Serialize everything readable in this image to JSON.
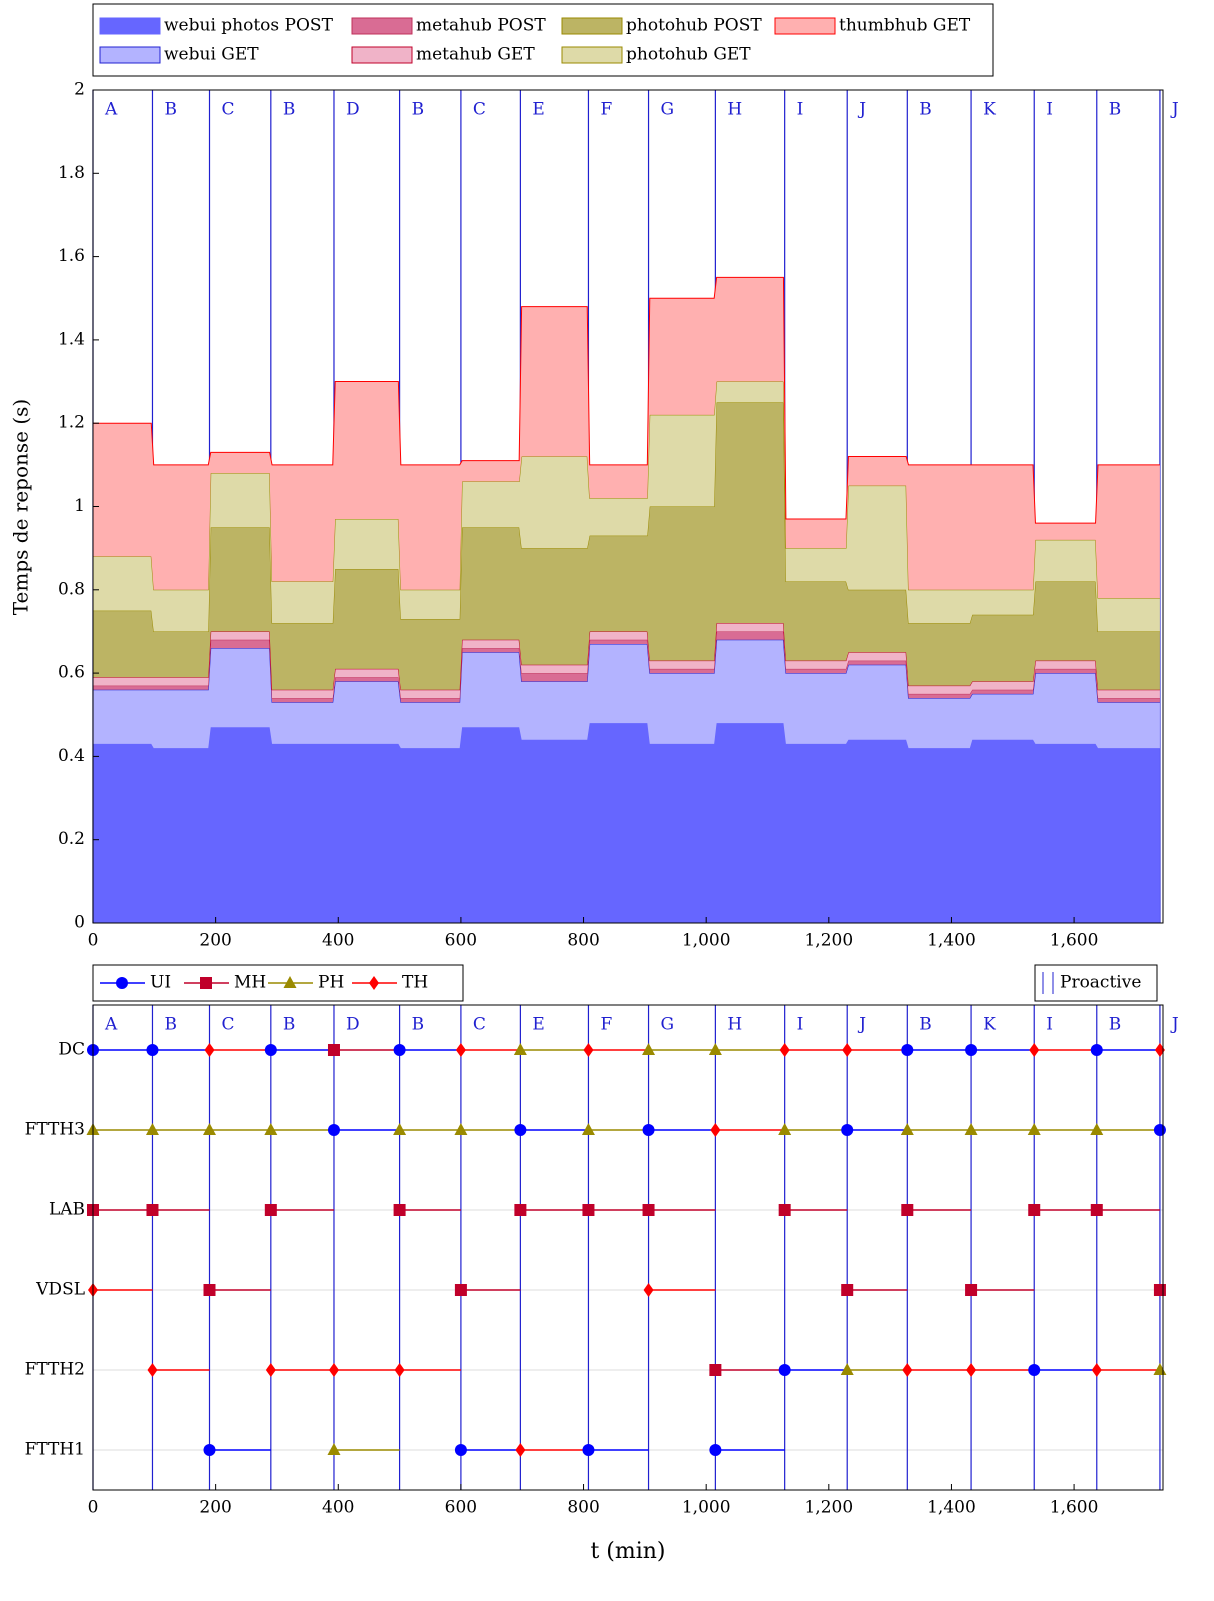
{
  "chart_data": [
    {
      "type": "area",
      "y_label": "Temps de reponse (s)",
      "xlim": [
        0,
        1745
      ],
      "ylim": [
        0,
        2
      ],
      "xticks": [
        0,
        200,
        400,
        600,
        800,
        {
          "value": 1000,
          "label": "1,000"
        },
        {
          "value": 1200,
          "label": "1,200"
        },
        {
          "value": 1400,
          "label": "1,400"
        },
        {
          "value": 1600,
          "label": "1,600"
        }
      ],
      "yticks": [
        0,
        0.2,
        0.4,
        0.6,
        0.8,
        1,
        1.2,
        1.4,
        1.6,
        1.8,
        2
      ],
      "phases": {
        "x": [
          0,
          97,
          190,
          290,
          393,
          500,
          600,
          697,
          808,
          906,
          1015,
          1128,
          1230,
          1328,
          1432,
          1535,
          1637,
          1740
        ],
        "labels": [
          "A",
          "B",
          "C",
          "B",
          "D",
          "B",
          "C",
          "E",
          "F",
          "G",
          "H",
          "I",
          "J",
          "B",
          "K",
          "I",
          "B",
          "J"
        ]
      },
      "x": [
        0,
        95,
        99,
        188,
        192,
        288,
        292,
        391,
        395,
        498,
        502,
        598,
        602,
        695,
        699,
        806,
        810,
        904,
        908,
        1013,
        1017,
        1126,
        1130,
        1228,
        1232,
        1326,
        1330,
        1430,
        1434,
        1533,
        1537,
        1635,
        1639,
        1740
      ],
      "series": [
        {
          "name": "webui photos POST",
          "color": "#6666ff",
          "edge": "#6666ff",
          "values": [
            0.43,
            0.43,
            0.42,
            0.42,
            0.47,
            0.47,
            0.43,
            0.43,
            0.43,
            0.43,
            0.42,
            0.42,
            0.47,
            0.47,
            0.44,
            0.44,
            0.48,
            0.48,
            0.43,
            0.43,
            0.48,
            0.48,
            0.43,
            0.43,
            0.44,
            0.44,
            0.42,
            0.42,
            0.44,
            0.44,
            0.43,
            0.43,
            0.42,
            0.42
          ]
        },
        {
          "name": "webui GET",
          "color": "#b3b3ff",
          "edge": "#2020d0",
          "values": [
            0.13,
            0.13,
            0.14,
            0.14,
            0.19,
            0.19,
            0.1,
            0.1,
            0.15,
            0.15,
            0.11,
            0.11,
            0.18,
            0.18,
            0.14,
            0.14,
            0.19,
            0.19,
            0.17,
            0.17,
            0.2,
            0.2,
            0.17,
            0.17,
            0.18,
            0.18,
            0.12,
            0.12,
            0.11,
            0.11,
            0.17,
            0.17,
            0.11,
            0.11
          ]
        },
        {
          "name": "metahub POST",
          "color": "#d96c94",
          "edge": "#c0305a",
          "values": [
            0.01,
            0.01,
            0.01,
            0.01,
            0.02,
            0.02,
            0.01,
            0.01,
            0.01,
            0.01,
            0.01,
            0.01,
            0.01,
            0.01,
            0.02,
            0.02,
            0.01,
            0.01,
            0.01,
            0.01,
            0.02,
            0.02,
            0.01,
            0.01,
            0.01,
            0.01,
            0.01,
            0.01,
            0.01,
            0.01,
            0.01,
            0.01,
            0.01,
            0.01
          ]
        },
        {
          "name": "metahub GET",
          "color": "#f0b3c8",
          "edge": "#c0002a",
          "values": [
            0.02,
            0.02,
            0.02,
            0.02,
            0.02,
            0.02,
            0.02,
            0.02,
            0.02,
            0.02,
            0.02,
            0.02,
            0.02,
            0.02,
            0.02,
            0.02,
            0.02,
            0.02,
            0.02,
            0.02,
            0.02,
            0.02,
            0.02,
            0.02,
            0.02,
            0.02,
            0.02,
            0.02,
            0.02,
            0.02,
            0.02,
            0.02,
            0.02,
            0.02
          ]
        },
        {
          "name": "photohub POST",
          "color": "#bcb464",
          "edge": "#9a8a00",
          "values": [
            0.16,
            0.16,
            0.11,
            0.11,
            0.25,
            0.25,
            0.16,
            0.16,
            0.24,
            0.24,
            0.17,
            0.17,
            0.27,
            0.27,
            0.28,
            0.28,
            0.23,
            0.23,
            0.37,
            0.37,
            0.53,
            0.53,
            0.19,
            0.19,
            0.15,
            0.15,
            0.15,
            0.15,
            0.16,
            0.16,
            0.19,
            0.19,
            0.14,
            0.14
          ]
        },
        {
          "name": "photohub GET",
          "color": "#dedaa8",
          "edge": "#9a8a00",
          "values": [
            0.13,
            0.13,
            0.1,
            0.1,
            0.13,
            0.13,
            0.1,
            0.1,
            0.12,
            0.12,
            0.07,
            0.07,
            0.11,
            0.11,
            0.22,
            0.22,
            0.09,
            0.09,
            0.22,
            0.22,
            0.05,
            0.05,
            0.08,
            0.08,
            0.25,
            0.25,
            0.08,
            0.08,
            0.06,
            0.06,
            0.1,
            0.1,
            0.08,
            0.08
          ]
        },
        {
          "name": "thumbhub GET",
          "color": "#ffb0b0",
          "edge": "#ff0000",
          "values": [
            0.32,
            0.32,
            0.3,
            0.3,
            0.05,
            0.05,
            0.28,
            0.28,
            0.33,
            0.33,
            0.3,
            0.3,
            0.05,
            0.05,
            0.36,
            0.36,
            0.08,
            0.08,
            0.28,
            0.28,
            0.25,
            0.25,
            0.07,
            0.07,
            0.07,
            0.07,
            0.3,
            0.3,
            0.3,
            0.3,
            0.04,
            0.04,
            0.32,
            0.32
          ]
        }
      ]
    },
    {
      "type": "timeline",
      "x_label": "t (min)",
      "proactive_label": "Proactive",
      "xlim": [
        0,
        1745
      ],
      "xticks": [
        0,
        200,
        400,
        600,
        800,
        {
          "value": 1000,
          "label": "1,000"
        },
        {
          "value": 1200,
          "label": "1,200"
        },
        {
          "value": 1400,
          "label": "1,400"
        },
        {
          "value": 1600,
          "label": "1,600"
        }
      ],
      "categories": [
        "DC",
        "FTTH3",
        "LAB",
        "VDSL",
        "FTTH2",
        "FTTH1"
      ],
      "phases": {
        "x": [
          0,
          97,
          190,
          290,
          393,
          500,
          600,
          697,
          808,
          906,
          1015,
          1128,
          1230,
          1328,
          1432,
          1535,
          1637,
          1740
        ],
        "labels": [
          "A",
          "B",
          "C",
          "B",
          "D",
          "B",
          "C",
          "E",
          "F",
          "G",
          "H",
          "I",
          "J",
          "B",
          "K",
          "I",
          "B",
          "J"
        ]
      },
      "x": [
        0,
        97,
        190,
        290,
        393,
        500,
        600,
        697,
        808,
        906,
        1015,
        1128,
        1230,
        1328,
        1432,
        1535,
        1637,
        1740
      ],
      "series": [
        {
          "name": "UI",
          "color": "#0000ff",
          "marker": "circle",
          "values": [
            "DC",
            "DC",
            "FTTH1",
            "DC",
            "FTTH3",
            "DC",
            "FTTH1",
            "FTTH3",
            "FTTH1",
            "FTTH3",
            "FTTH1",
            "FTTH2",
            "FTTH3",
            "DC",
            "DC",
            "FTTH2",
            "DC",
            "FTTH3"
          ]
        },
        {
          "name": "MH",
          "color": "#c0002a",
          "marker": "square",
          "values": [
            "LAB",
            "LAB",
            "VDSL",
            "LAB",
            "DC",
            "LAB",
            "VDSL",
            "LAB",
            "LAB",
            "LAB",
            "FTTH2",
            "LAB",
            "VDSL",
            "LAB",
            "VDSL",
            "LAB",
            "LAB",
            "VDSL"
          ]
        },
        {
          "name": "PH",
          "color": "#9a8a00",
          "marker": "triangle",
          "values": [
            "FTTH3",
            "FTTH3",
            "FTTH3",
            "FTTH3",
            "FTTH1",
            "FTTH3",
            "FTTH3",
            "DC",
            "FTTH3",
            "DC",
            "DC",
            "FTTH3",
            "FTTH2",
            "FTTH3",
            "FTTH3",
            "FTTH3",
            "FTTH3",
            "FTTH2"
          ]
        },
        {
          "name": "TH",
          "color": "#ff0000",
          "marker": "diamond",
          "values": [
            "VDSL",
            "FTTH2",
            "DC",
            "FTTH2",
            "FTTH2",
            "FTTH2",
            "DC",
            "FTTH1",
            "DC",
            "VDSL",
            "FTTH3",
            "DC",
            "DC",
            "FTTH2",
            "FTTH2",
            "DC",
            "FTTH2",
            "DC"
          ]
        }
      ]
    }
  ]
}
